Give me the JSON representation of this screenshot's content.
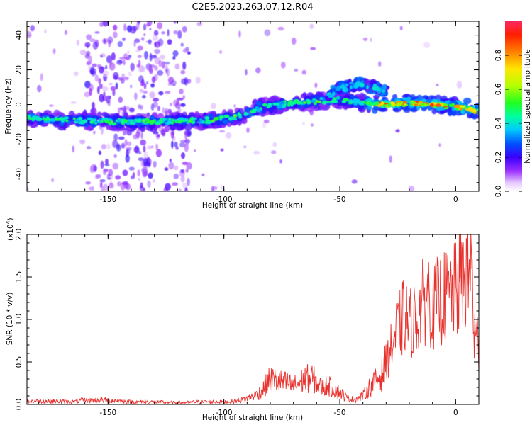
{
  "title": "C2E5.2023.263.07.12.R04",
  "chart_data": [
    {
      "type": "heatmap",
      "xlabel": "Height of straight line (km)",
      "ylabel": "Frequency (Hz)",
      "xlim": [
        -185,
        10
      ],
      "ylim": [
        -50,
        48
      ],
      "xticks": [
        -150,
        -100,
        -50,
        0
      ],
      "yticks": [
        -40,
        -20,
        0,
        20,
        40
      ],
      "grid": false,
      "colorbar": {
        "label": "Normalized spectral amplitude",
        "range": [
          0,
          1
        ],
        "ticks": [
          "0.0",
          "0.2",
          "0.4",
          "0.6",
          "0.8"
        ]
      },
      "ridge": {
        "x": [
          -185,
          -170,
          -155,
          -145,
          -130,
          -115,
          -105,
          -95,
          -90,
          -85,
          -80,
          -70,
          -60,
          -50,
          -45,
          -40,
          -30,
          -20,
          -10,
          0,
          5,
          10
        ],
        "freq": [
          -8,
          -9,
          -9.5,
          -10,
          -10,
          -9.5,
          -9,
          -7,
          -5,
          -2,
          -1,
          1,
          2,
          3,
          2,
          1,
          0,
          1,
          0,
          -1,
          -2,
          -4
        ]
      },
      "upper_branch": {
        "x": [
          -55,
          -50,
          -45,
          -40,
          -35,
          -30
        ],
        "freq": [
          6,
          9,
          11,
          12,
          10,
          7
        ]
      }
    },
    {
      "type": "line",
      "xlabel": "Height of straight line (km)",
      "ylabel": "SNR (10 * v/v)",
      "ylabel_scale": "(x10",
      "ylabel_exp": "4",
      "ylabel_close": ")",
      "xlim": [
        -185,
        10
      ],
      "ylim": [
        0,
        2
      ],
      "xticks": [
        -150,
        -100,
        -50,
        0
      ],
      "yticks": [
        "0.0",
        "0.5",
        "1.0",
        "1.5",
        "2.0"
      ],
      "grid": false,
      "color": "#e8302c",
      "series": [
        {
          "x": [
            -185,
            -175,
            -165,
            -160,
            -155,
            -150,
            -140,
            -130,
            -120,
            -110,
            -100,
            -95,
            -90,
            -85,
            -82,
            -80,
            -78,
            -75,
            -72,
            -70,
            -68,
            -65,
            -62,
            -60,
            -58,
            -55,
            -52,
            -50,
            -47,
            -45,
            -42,
            -40,
            -38,
            -35,
            -32,
            -30,
            -28,
            -25,
            -22,
            -20,
            -18,
            -15,
            -12,
            -10,
            -8,
            -5,
            -2,
            0,
            2,
            4,
            6,
            7,
            8,
            10
          ],
          "values": [
            0.04,
            0.04,
            0.03,
            0.05,
            0.05,
            0.05,
            0.03,
            0.03,
            0.02,
            0.03,
            0.03,
            0.04,
            0.07,
            0.13,
            0.22,
            0.3,
            0.28,
            0.26,
            0.24,
            0.22,
            0.24,
            0.3,
            0.31,
            0.26,
            0.2,
            0.22,
            0.18,
            0.14,
            0.08,
            0.06,
            0.07,
            0.1,
            0.18,
            0.26,
            0.35,
            0.48,
            0.65,
            0.9,
            1.05,
            0.95,
            1.0,
            1.15,
            1.3,
            1.12,
            1.2,
            1.25,
            1.3,
            1.32,
            1.45,
            1.5,
            1.58,
            1.6,
            0.8,
            0.7
          ]
        }
      ]
    }
  ]
}
